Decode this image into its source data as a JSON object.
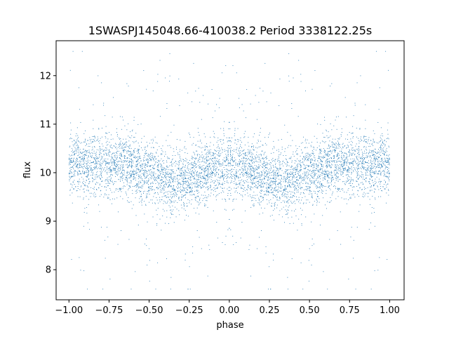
{
  "chart_data": {
    "type": "scatter",
    "title": "1SWASPJ145048.66-410038.2 Period 3338122.25s",
    "xlabel": "phase",
    "ylabel": "flux",
    "xlim": [
      -1.08,
      1.09
    ],
    "ylim": [
      7.38,
      12.72
    ],
    "x_ticks": [
      -1.0,
      -0.75,
      -0.5,
      -0.25,
      0.0,
      0.25,
      0.5,
      0.75,
      1.0
    ],
    "x_tick_labels": [
      "−1.00",
      "−0.75",
      "−0.50",
      "−0.25",
      "0.00",
      "0.25",
      "0.50",
      "0.75",
      "1.00"
    ],
    "y_ticks": [
      8,
      9,
      10,
      11,
      12
    ],
    "y_tick_labels": [
      "8",
      "9",
      "10",
      "11",
      "12"
    ],
    "grid": false,
    "legend": "none",
    "point_color": "#1f77b4",
    "series": [
      {
        "name": "",
        "x_range": [
          -1.0,
          1.0
        ],
        "symmetric_about_phase": 0,
        "profile": [
          {
            "x": -1.0,
            "y": 10.15
          },
          {
            "x": -0.95,
            "y": 10.3
          },
          {
            "x": -0.9,
            "y": 10.1
          },
          {
            "x": -0.82,
            "y": 10.25
          },
          {
            "x": -0.75,
            "y": 10.1
          },
          {
            "x": -0.65,
            "y": 10.15
          },
          {
            "x": -0.55,
            "y": 10.05
          },
          {
            "x": -0.45,
            "y": 9.95
          },
          {
            "x": -0.38,
            "y": 9.85
          },
          {
            "x": -0.3,
            "y": 9.8
          },
          {
            "x": -0.2,
            "y": 9.95
          },
          {
            "x": -0.1,
            "y": 10.1
          },
          {
            "x": 0.0,
            "y": 10.15
          }
        ],
        "scatter_sigma": 0.33,
        "n_points": 6000
      }
    ]
  }
}
